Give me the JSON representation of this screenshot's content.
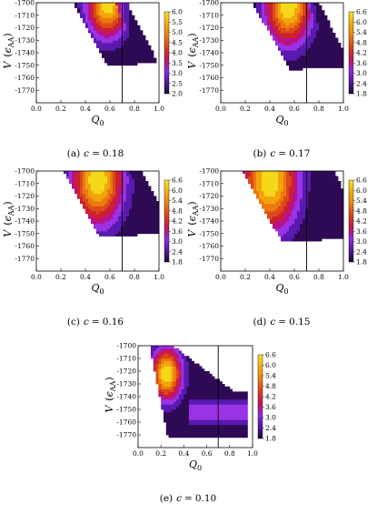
{
  "panels": [
    {
      "id": "a",
      "caption": {
        "label": "(a)",
        "var": "c",
        "eq": "=",
        "value": "0.18"
      },
      "xlabel": {
        "main": "Q",
        "sub": "0"
      },
      "ylabel": {
        "main": "V",
        "paren_open": "(",
        "eps": "ϵ",
        "sub": "AA",
        "paren_close": ")"
      },
      "xlim": [
        0.0,
        1.0
      ],
      "ylim": [
        -1780,
        -1700
      ],
      "xticks": [
        "0.0",
        "0.2",
        "0.4",
        "0.6",
        "0.8",
        "1.0"
      ],
      "yticks": [
        "-1700",
        "-1710",
        "-1720",
        "-1730",
        "-1740",
        "-1750",
        "-1760",
        "-1770"
      ],
      "vline_x": 0.7,
      "colorbar": {
        "min": 2.0,
        "max": 6.0,
        "ticks": [
          "6.0",
          "5.5",
          "5.0",
          "4.5",
          "4.0",
          "3.5",
          "3.0",
          "2.5",
          "2.0"
        ]
      },
      "peak": {
        "q": 0.58,
        "v": -1700
      }
    },
    {
      "id": "b",
      "caption": {
        "label": "(b)",
        "var": "c",
        "eq": "=",
        "value": "0.17"
      },
      "xlabel": {
        "main": "Q",
        "sub": "0"
      },
      "ylabel": {
        "main": "V",
        "paren_open": "(",
        "eps": "ϵ",
        "sub": "AA",
        "paren_close": ")"
      },
      "xlim": [
        0.0,
        1.0
      ],
      "ylim": [
        -1780,
        -1700
      ],
      "xticks": [
        "0.0",
        "0.2",
        "0.4",
        "0.6",
        "0.8",
        "1.0"
      ],
      "yticks": [
        "-1700",
        "-1710",
        "-1720",
        "-1730",
        "-1740",
        "-1750",
        "-1760",
        "-1770"
      ],
      "vline_x": 0.7,
      "colorbar": {
        "min": 1.8,
        "max": 6.6,
        "ticks": [
          "6.6",
          "6.0",
          "5.4",
          "4.8",
          "4.2",
          "3.6",
          "3.0",
          "2.4",
          "1.8"
        ]
      },
      "peak": {
        "q": 0.55,
        "v": -1702
      }
    },
    {
      "id": "c",
      "caption": {
        "label": "(c)",
        "var": "c",
        "eq": "=",
        "value": "0.16"
      },
      "xlabel": {
        "main": "Q",
        "sub": "0"
      },
      "ylabel": {
        "main": "V",
        "paren_open": "(",
        "eps": "ϵ",
        "sub": "AA",
        "paren_close": ")"
      },
      "xlim": [
        0.0,
        1.0
      ],
      "ylim": [
        -1780,
        -1700
      ],
      "xticks": [
        "0.0",
        "0.2",
        "0.4",
        "0.6",
        "0.8",
        "1.0"
      ],
      "yticks": [
        "-1700",
        "-1710",
        "-1720",
        "-1730",
        "-1740",
        "-1750",
        "-1760",
        "-1770"
      ],
      "vline_x": 0.7,
      "colorbar": {
        "min": 1.8,
        "max": 6.6,
        "ticks": [
          "6.6",
          "6.0",
          "5.4",
          "4.8",
          "4.2",
          "3.6",
          "3.0",
          "2.4",
          "1.8"
        ]
      },
      "peak": {
        "q": 0.5,
        "v": -1707
      }
    },
    {
      "id": "d",
      "caption": {
        "label": "(d)",
        "var": "c",
        "eq": "=",
        "value": "0.15"
      },
      "xlabel": {
        "main": "Q",
        "sub": "0"
      },
      "ylabel": {
        "main": "V",
        "paren_open": "(",
        "eps": "ϵ",
        "sub": "AA",
        "paren_close": ")"
      },
      "xlim": [
        0.0,
        1.0
      ],
      "ylim": [
        -1780,
        -1700
      ],
      "xticks": [
        "0.0",
        "0.2",
        "0.4",
        "0.6",
        "0.8",
        "1.0"
      ],
      "yticks": [
        "-1700",
        "-1710",
        "-1720",
        "-1730",
        "-1740",
        "-1750",
        "-1760",
        "-1770"
      ],
      "vline_x": 0.7,
      "colorbar": {
        "min": 1.8,
        "max": 6.6,
        "ticks": [
          "6.6",
          "6.0",
          "5.4",
          "4.8",
          "4.2",
          "3.6",
          "3.0",
          "2.4",
          "1.8"
        ]
      },
      "peak": {
        "q": 0.4,
        "v": -1708
      }
    },
    {
      "id": "e",
      "caption": {
        "label": "(e)",
        "var": "c",
        "eq": "=",
        "value": "0.10"
      },
      "xlabel": {
        "main": "Q",
        "sub": "0"
      },
      "ylabel": {
        "main": "V",
        "paren_open": "(",
        "eps": "ϵ",
        "sub": "AA",
        "paren_close": ")"
      },
      "xlim": [
        0.0,
        1.0
      ],
      "ylim": [
        -1780,
        -1700
      ],
      "xticks": [
        "0.0",
        "0.2",
        "0.4",
        "0.6",
        "0.8",
        "1.0"
      ],
      "yticks": [
        "-1700",
        "-1710",
        "-1720",
        "-1730",
        "-1740",
        "-1750",
        "-1760",
        "-1770"
      ],
      "vline_x": 0.7,
      "colorbar": {
        "min": 1.8,
        "max": 6.6,
        "ticks": [
          "6.6",
          "6.0",
          "5.4",
          "4.8",
          "4.2",
          "3.6",
          "3.0",
          "2.4",
          "1.8"
        ]
      },
      "peak": {
        "q": 0.25,
        "v": -1722
      }
    }
  ],
  "chart_data": [
    {
      "type": "heatmap",
      "caption": "(a) c = 0.18",
      "xlim": [
        0.0,
        1.0
      ],
      "ylim": [
        -1780,
        -1700
      ],
      "vline_x": 0.7,
      "colorbar_range": [
        2.0,
        6.0
      ],
      "maximum_location": {
        "q0": 0.58,
        "v": -1700
      }
    },
    {
      "type": "heatmap",
      "caption": "(b) c = 0.17",
      "xlim": [
        0.0,
        1.0
      ],
      "ylim": [
        -1780,
        -1700
      ],
      "vline_x": 0.7,
      "colorbar_range": [
        1.8,
        6.6
      ],
      "maximum_location": {
        "q0": 0.55,
        "v": -1702
      }
    },
    {
      "type": "heatmap",
      "caption": "(c) c = 0.16",
      "xlim": [
        0.0,
        1.0
      ],
      "ylim": [
        -1780,
        -1700
      ],
      "vline_x": 0.7,
      "colorbar_range": [
        1.8,
        6.6
      ],
      "maximum_location": {
        "q0": 0.5,
        "v": -1707
      }
    },
    {
      "type": "heatmap",
      "caption": "(d) c = 0.15",
      "xlim": [
        0.0,
        1.0
      ],
      "ylim": [
        -1780,
        -1700
      ],
      "vline_x": 0.7,
      "colorbar_range": [
        1.8,
        6.6
      ],
      "maximum_location": {
        "q0": 0.4,
        "v": -1708
      }
    },
    {
      "type": "heatmap",
      "caption": "(e) c = 0.10",
      "xlim": [
        0.0,
        1.0
      ],
      "ylim": [
        -1780,
        -1700
      ],
      "vline_x": 0.7,
      "colorbar_range": [
        1.8,
        6.6
      ],
      "maximum_location": {
        "q0": 0.25,
        "v": -1722
      }
    }
  ]
}
